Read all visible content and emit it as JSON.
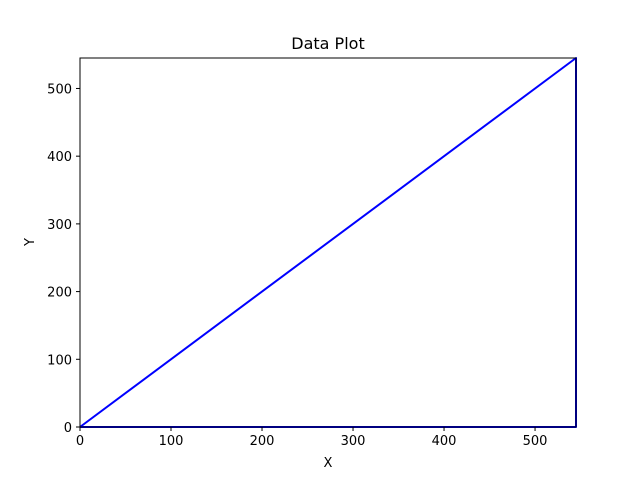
{
  "chart_data": {
    "type": "line",
    "title": "Data Plot",
    "xlabel": "X",
    "ylabel": "Y",
    "xlim": [
      0,
      545
    ],
    "ylim": [
      0,
      545
    ],
    "xticks": [
      0,
      100,
      200,
      300,
      400,
      500
    ],
    "yticks": [
      0,
      100,
      200,
      300,
      400,
      500
    ],
    "grid": false,
    "series": [
      {
        "color": "#0000ff",
        "x": [
          0,
          545,
          545,
          0
        ],
        "y": [
          0,
          545,
          0,
          0
        ]
      }
    ]
  }
}
